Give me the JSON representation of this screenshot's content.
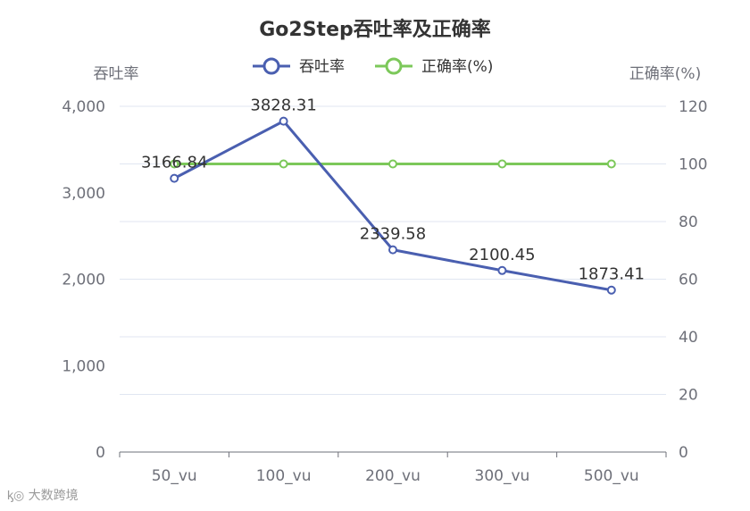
{
  "chart_data": {
    "type": "line",
    "title": "Go2Step吞吐率及正确率",
    "categories": [
      "50_vu",
      "100_vu",
      "200_vu",
      "300_vu",
      "500_vu"
    ],
    "y_left": {
      "name": "吞吐率",
      "range": [
        0,
        4000
      ],
      "ticks": [
        0,
        1000,
        2000,
        3000,
        4000
      ],
      "tick_labels": [
        "0",
        "1,000",
        "2,000",
        "3,000",
        "4,000"
      ]
    },
    "y_right": {
      "name": "正确率(%)",
      "range": [
        0,
        120
      ],
      "ticks": [
        0,
        20,
        40,
        60,
        80,
        100,
        120
      ],
      "tick_labels": [
        "0",
        "20",
        "40",
        "60",
        "80",
        "100",
        "120"
      ]
    },
    "series": [
      {
        "name": "吞吐率",
        "axis": "left",
        "color": "#4a5fb0",
        "values": [
          3166.84,
          3828.31,
          2339.58,
          2100.45,
          1873.41
        ],
        "labels": [
          "3166.84",
          "3828.31",
          "2339.58",
          "2100.45",
          "1873.41"
        ]
      },
      {
        "name": "正确率(%)",
        "axis": "right",
        "color": "#7cc85a",
        "values": [
          100,
          100,
          100,
          100,
          100
        ]
      }
    ],
    "legend_position": "top-center",
    "grid": true
  },
  "watermark": "大数跨境"
}
